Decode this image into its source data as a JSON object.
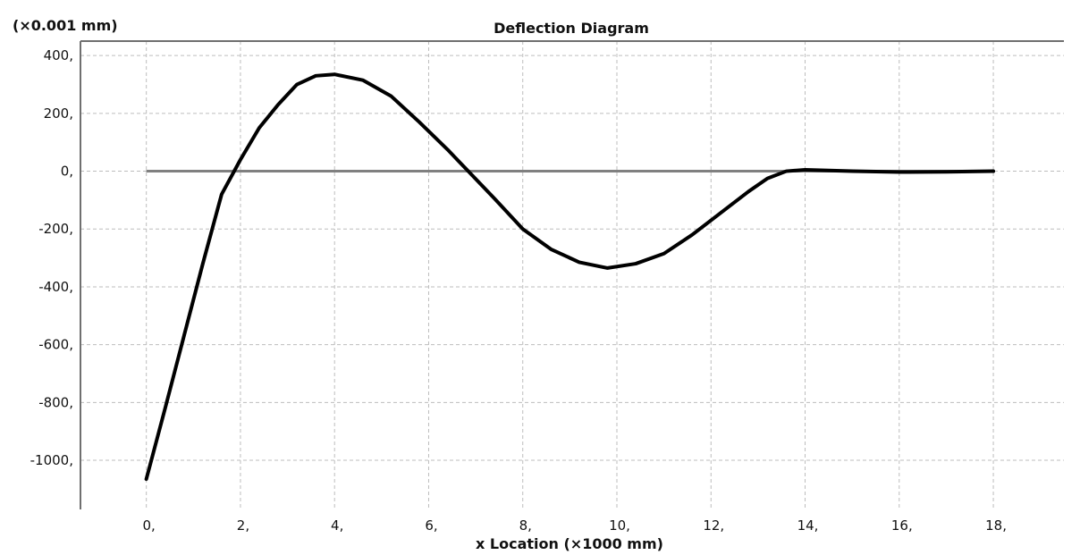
{
  "chart_data": {
    "type": "line",
    "title": "Deflection Diagram",
    "xlabel": "x Location (×1000 mm)",
    "ylabel": "(×0.001 mm)",
    "xlim": [
      -1.4,
      19.5
    ],
    "ylim": [
      -1170,
      450
    ],
    "x_ticks": [
      0,
      2,
      4,
      6,
      8,
      10,
      12,
      14,
      16,
      18
    ],
    "x_tick_labels": [
      "0,",
      "2,",
      "4,",
      "6,",
      "8,",
      "10,",
      "12,",
      "14,",
      "16,",
      "18,"
    ],
    "y_ticks": [
      400,
      200,
      0,
      -200,
      -400,
      -600,
      -800,
      -1000
    ],
    "y_tick_labels": [
      "400,",
      "200,",
      "0,",
      "-200,",
      "-400,",
      "-600,",
      "-800,",
      "-1000,"
    ],
    "grid": true,
    "series": [
      {
        "color": "#000000",
        "points": [
          [
            0.0,
            -1065
          ],
          [
            0.4,
            -820
          ],
          [
            0.8,
            -570
          ],
          [
            1.2,
            -320
          ],
          [
            1.6,
            -80
          ],
          [
            2.0,
            40
          ],
          [
            2.4,
            150
          ],
          [
            2.8,
            230
          ],
          [
            3.2,
            300
          ],
          [
            3.6,
            330
          ],
          [
            4.0,
            335
          ],
          [
            4.6,
            315
          ],
          [
            5.2,
            260
          ],
          [
            5.8,
            170
          ],
          [
            6.4,
            75
          ],
          [
            6.9,
            -10
          ],
          [
            7.4,
            -95
          ],
          [
            8.0,
            -200
          ],
          [
            8.6,
            -270
          ],
          [
            9.2,
            -315
          ],
          [
            9.8,
            -335
          ],
          [
            10.4,
            -320
          ],
          [
            11.0,
            -285
          ],
          [
            11.6,
            -220
          ],
          [
            12.2,
            -145
          ],
          [
            12.8,
            -70
          ],
          [
            13.2,
            -25
          ],
          [
            13.6,
            0
          ],
          [
            14.0,
            5
          ],
          [
            15.0,
            0
          ],
          [
            16.0,
            -3
          ],
          [
            17.0,
            -2
          ],
          [
            18.0,
            0
          ]
        ]
      }
    ],
    "zero_line": {
      "y": 0,
      "x_start": 0,
      "x_end": 18,
      "color": "#808080"
    },
    "colors": {
      "grid": "#bdbdbd",
      "axis": "#6f6f6f",
      "background": "#ffffff",
      "text": "#111111"
    }
  }
}
